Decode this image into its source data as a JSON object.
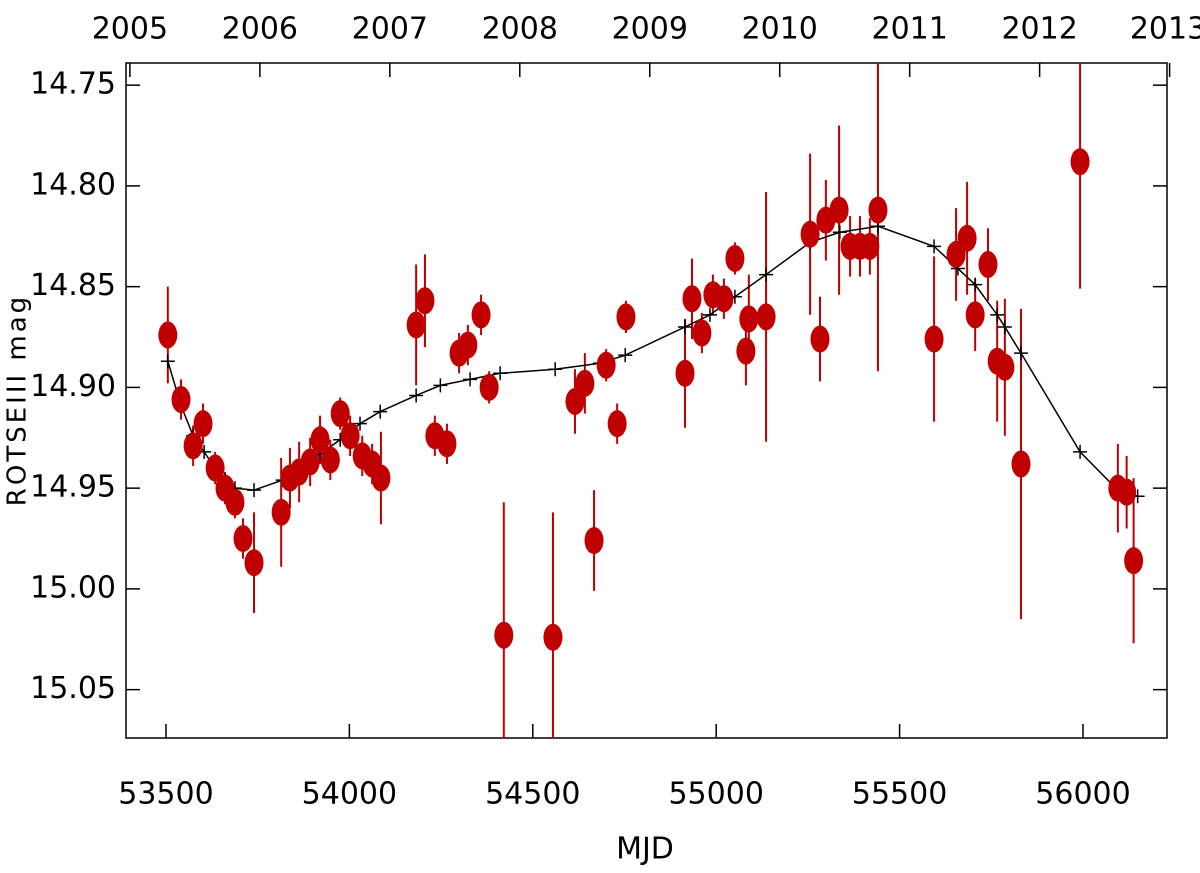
{
  "chart_data": {
    "type": "scatter",
    "xlabel": "MJD",
    "ylabel": "ROTSEIII mag",
    "xlim": [
      53391,
      56229
    ],
    "ylim": [
      14.739,
      15.074
    ],
    "invert_y": true,
    "xticks": [
      53500,
      54000,
      54500,
      55000,
      55500,
      56000
    ],
    "yticks": [
      14.75,
      {
        "value": 14.8,
        "label": "14.80"
      },
      14.85,
      {
        "value": 14.9,
        "label": "14.90"
      },
      14.95,
      {
        "value": 15.0,
        "label": "15.00"
      },
      15.05
    ],
    "top_axis": {
      "xlim": [
        2004.97,
        2012.98
      ],
      "ticks": [
        2005,
        2006,
        2007,
        2008,
        2009,
        2010,
        2011,
        2012,
        2013
      ]
    },
    "points": {
      "color": "#c00000",
      "x": [
        53505,
        53541,
        53574,
        53601,
        53634,
        53661,
        53688,
        53710,
        53740,
        53814,
        53838,
        53863,
        53893,
        53920,
        53948,
        53975,
        54002,
        54035,
        54062,
        54086,
        54182,
        54206,
        54233,
        54266,
        54299,
        54323,
        54359,
        54381,
        54421,
        54555,
        54615,
        54642,
        54667,
        54700,
        54730,
        54754,
        54915,
        54934,
        54961,
        54991,
        55021,
        55051,
        55081,
        55089,
        55136,
        55256,
        55283,
        55299,
        55335,
        55365,
        55392,
        55419,
        55441,
        55594,
        55654,
        55684,
        55706,
        55741,
        55766,
        55787,
        55831,
        55992,
        56095,
        56119,
        56138
      ],
      "values": [
        14.874,
        14.906,
        14.929,
        14.918,
        14.94,
        14.95,
        14.957,
        14.975,
        14.987,
        14.962,
        14.945,
        14.942,
        14.937,
        14.926,
        14.936,
        14.913,
        14.924,
        14.934,
        14.938,
        14.945,
        14.869,
        14.857,
        14.924,
        14.928,
        14.883,
        14.879,
        14.864,
        14.9,
        15.023,
        15.024,
        14.907,
        14.898,
        14.976,
        14.889,
        14.918,
        14.865,
        14.893,
        14.856,
        14.873,
        14.854,
        14.856,
        14.836,
        14.882,
        14.866,
        14.865,
        14.824,
        14.876,
        14.817,
        14.812,
        14.83,
        14.83,
        14.83,
        14.812,
        14.876,
        14.834,
        14.826,
        14.864,
        14.839,
        14.887,
        14.89,
        14.938,
        14.788,
        14.95,
        14.952,
        14.986
      ],
      "errors": [
        0.024,
        0.01,
        0.01,
        0.01,
        0.008,
        0.008,
        0.008,
        0.01,
        0.025,
        0.027,
        0.015,
        0.015,
        0.012,
        0.012,
        0.01,
        0.008,
        0.01,
        0.01,
        0.01,
        0.023,
        0.03,
        0.023,
        0.01,
        0.01,
        0.01,
        0.01,
        0.01,
        0.008,
        0.066,
        0.062,
        0.016,
        0.015,
        0.025,
        0.008,
        0.01,
        0.008,
        0.027,
        0.02,
        0.01,
        0.01,
        0.01,
        0.008,
        0.017,
        0.022,
        0.062,
        0.04,
        0.021,
        0.02,
        0.042,
        0.015,
        0.015,
        0.014,
        0.08,
        0.041,
        0.023,
        0.028,
        0.018,
        0.018,
        0.03,
        0.034,
        0.077,
        0.063,
        0.022,
        0.018,
        0.041
      ]
    },
    "model": {
      "color": "#000000",
      "x": [
        53505,
        53541,
        53574,
        53604,
        53634,
        53661,
        53688,
        53740,
        53818,
        53866,
        53920,
        53975,
        54029,
        54084,
        54182,
        54248,
        54329,
        54411,
        54561,
        54683,
        54752,
        54915,
        54983,
        55051,
        55136,
        55256,
        55337,
        55441,
        55594,
        55659,
        55706,
        55766,
        55787,
        55831,
        55992,
        56095,
        56149
      ],
      "values": [
        14.887,
        14.909,
        14.924,
        14.932,
        14.94,
        14.946,
        14.95,
        14.951,
        14.946,
        14.941,
        14.933,
        14.926,
        14.918,
        14.912,
        14.904,
        14.899,
        14.896,
        14.893,
        14.891,
        14.888,
        14.884,
        14.87,
        14.864,
        14.855,
        14.844,
        14.828,
        14.823,
        14.82,
        14.83,
        14.841,
        14.849,
        14.864,
        14.87,
        14.883,
        14.932,
        14.951,
        14.954
      ]
    }
  }
}
